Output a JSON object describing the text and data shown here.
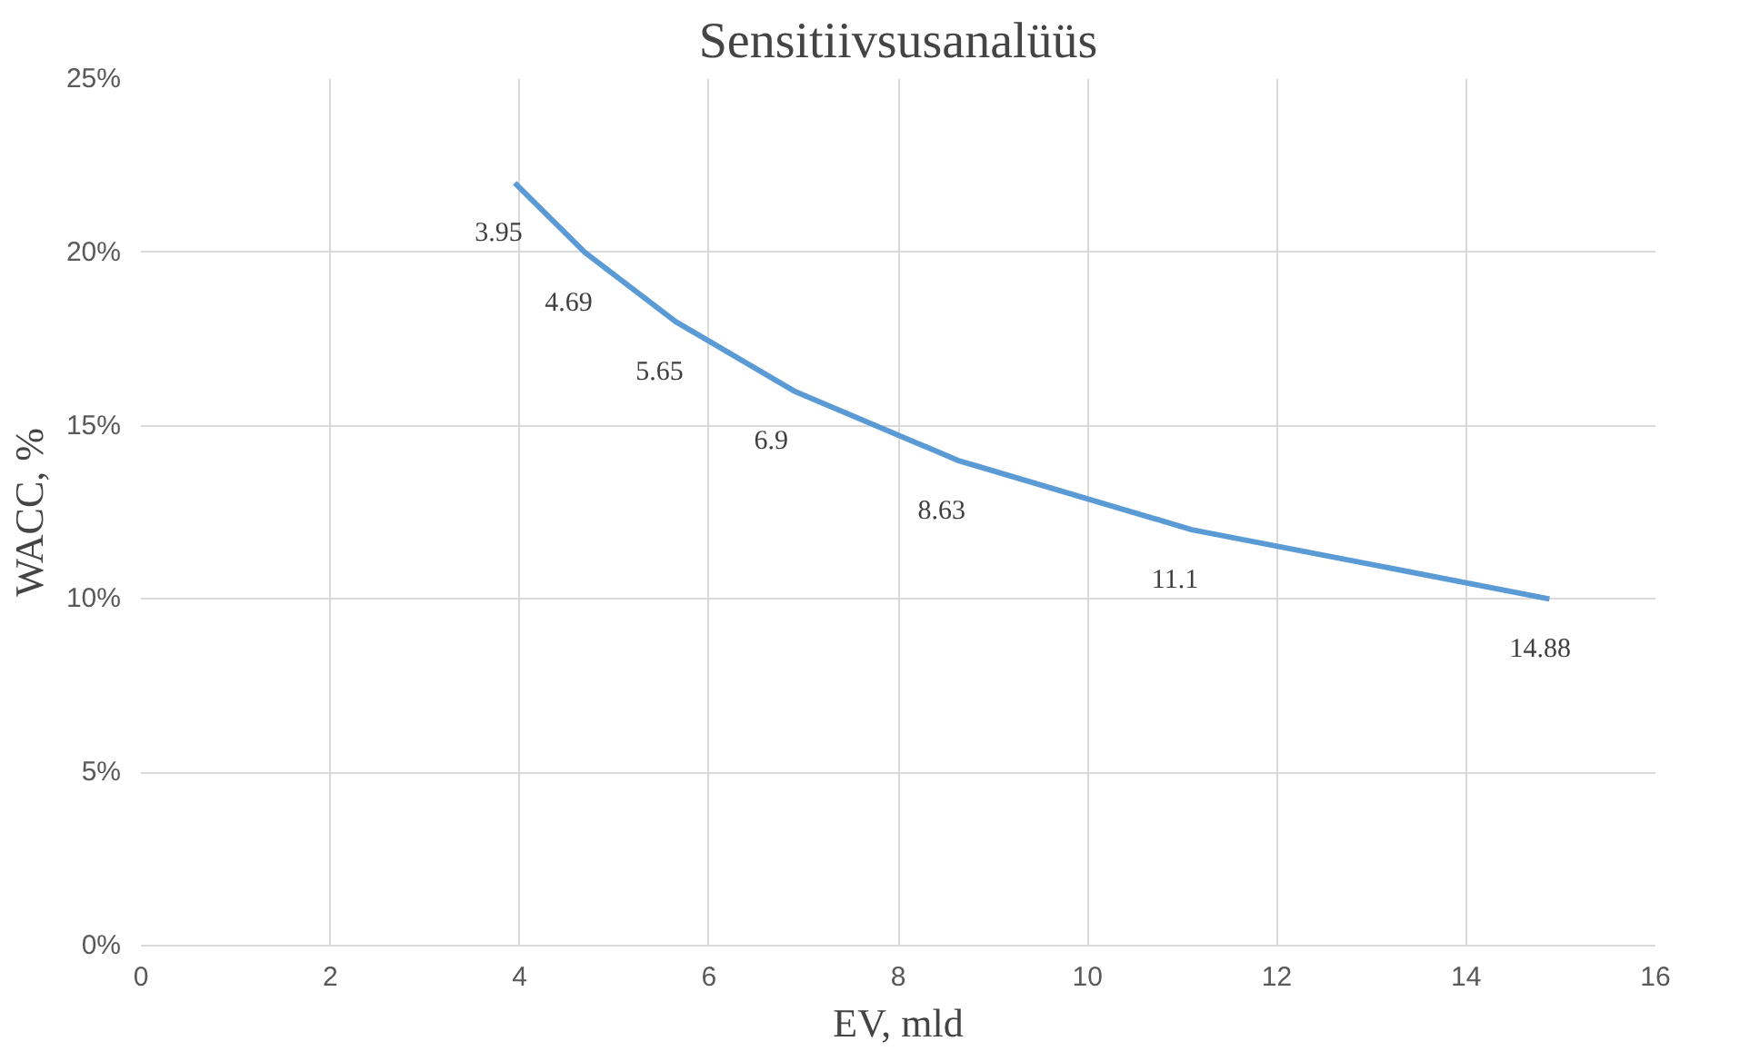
{
  "chart_data": {
    "type": "line",
    "title": "Sensitiivsusanalüüs",
    "xlabel": "EV, mld",
    "ylabel": "WACC, %",
    "series": [
      {
        "color": "#5b9bd5",
        "x": [
          3.95,
          4.69,
          5.65,
          6.9,
          8.63,
          11.1,
          14.88
        ],
        "values": [
          22,
          20,
          18,
          16,
          14,
          12,
          10
        ]
      }
    ],
    "annotations": [
      {
        "text": "3.95",
        "x": 3.95,
        "y": 22
      },
      {
        "text": "4.69",
        "x": 4.69,
        "y": 20
      },
      {
        "text": "5.65",
        "x": 5.65,
        "y": 18
      },
      {
        "text": "6.9",
        "x": 6.9,
        "y": 16
      },
      {
        "text": "8.63",
        "x": 8.63,
        "y": 14
      },
      {
        "text": "11.1",
        "x": 11.1,
        "y": 12
      },
      {
        "text": "14.88",
        "x": 14.88,
        "y": 10
      }
    ],
    "xlim": [
      0,
      16
    ],
    "xticks": [
      0,
      2,
      4,
      6,
      8,
      10,
      12,
      14,
      16
    ],
    "ylim": [
      0,
      25
    ],
    "yticks": [
      {
        "value": 0,
        "label": "0%"
      },
      {
        "value": 5,
        "label": "5%"
      },
      {
        "value": 10,
        "label": "10%"
      },
      {
        "value": 15,
        "label": "15%"
      },
      {
        "value": 20,
        "label": "20%"
      },
      {
        "value": 25,
        "label": "25%"
      }
    ],
    "grid": true,
    "marker": "none",
    "line_style": "solid"
  }
}
